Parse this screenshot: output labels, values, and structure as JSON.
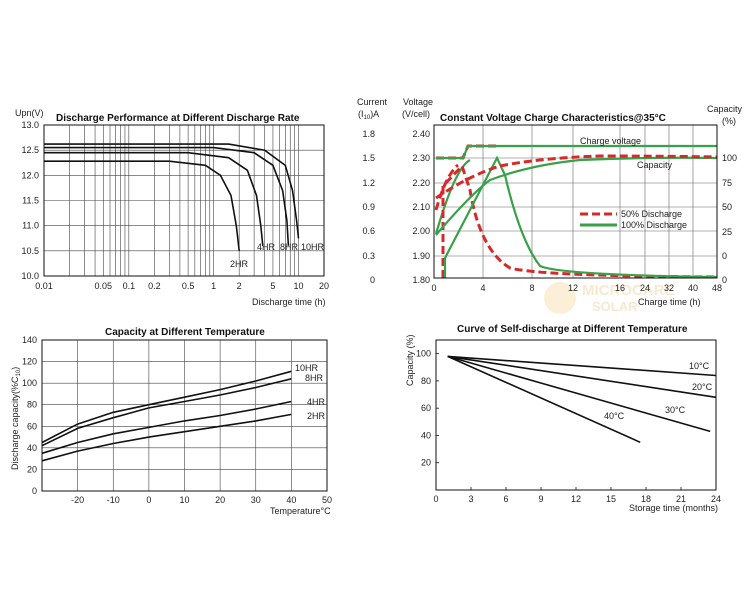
{
  "chart_data": [
    {
      "type": "line",
      "title": "Discharge Performance at Different Discharge Rate",
      "ylabel": "Upn(V)",
      "xlabel": "Discharge  time (h)",
      "x_scale": "log",
      "xlim": [
        0.01,
        20
      ],
      "ylim": [
        10.0,
        13.0
      ],
      "x_ticks": [
        0.01,
        0.05,
        0.1,
        0.2,
        0.5,
        1,
        2,
        5,
        10,
        20
      ],
      "x_tick_labels": [
        "0.01",
        "0.05",
        "0.1",
        "0.2",
        "0.5",
        "1",
        "2",
        "5",
        "10",
        "20"
      ],
      "y_ticks": [
        10.0,
        10.5,
        11.0,
        11.5,
        12.0,
        12.5,
        13.0
      ],
      "y_tick_labels": [
        "10.0",
        "10.5",
        "11.0",
        "11.5",
        "12.0",
        "12.5",
        "13.0"
      ],
      "grid": true,
      "series": [
        {
          "name": "2HR",
          "x": [
            0.01,
            0.3,
            0.8,
            1.2,
            1.6,
            1.85,
            2.0
          ],
          "y": [
            12.28,
            12.28,
            12.2,
            12.0,
            11.6,
            11.0,
            10.5
          ]
        },
        {
          "name": "4HR",
          "x": [
            0.01,
            0.5,
            1.5,
            2.5,
            3.2,
            3.6,
            3.8
          ],
          "y": [
            12.45,
            12.45,
            12.35,
            12.1,
            11.6,
            11.0,
            10.6
          ]
        },
        {
          "name": "8HR",
          "x": [
            0.01,
            1.0,
            3.0,
            5.0,
            6.5,
            7.3,
            7.6
          ],
          "y": [
            12.55,
            12.55,
            12.45,
            12.2,
            11.7,
            11.1,
            10.6
          ]
        },
        {
          "name": "10HR",
          "x": [
            0.01,
            1.5,
            4.0,
            7.0,
            8.5,
            9.5,
            10.0
          ],
          "y": [
            12.62,
            12.62,
            12.5,
            12.2,
            11.7,
            11.1,
            10.75
          ]
        }
      ],
      "labels": [
        "2HR",
        "4HR",
        "8HR",
        "10HR"
      ]
    },
    {
      "type": "line",
      "title": "Constant Voltage Charge Characteristics@35°C",
      "y_left1_label": [
        "Current",
        "(I",
        "10",
        ")A"
      ],
      "y_left2_label": [
        "Voltage",
        "(V/cell)"
      ],
      "y_right_label": [
        "Capacity",
        "(%)"
      ],
      "xlabel": "Charge time (h)",
      "x_ticks": [
        0,
        4,
        8,
        12,
        16,
        24,
        32,
        40,
        48
      ],
      "current_ticks": [
        "1.8",
        "1.5",
        "1.2",
        "0.9",
        "0.6",
        "0.3",
        "0"
      ],
      "voltage_ticks": [
        "2.40",
        "2.30",
        "2.20",
        "2.10",
        "2.00",
        "1.90",
        "1.80"
      ],
      "capacity_ticks": [
        "100",
        "75",
        "50",
        "25",
        "0"
      ],
      "annotations": [
        "Charge voltage",
        "Capacity"
      ],
      "legend": [
        "50% Discharge",
        "100% Discharge"
      ],
      "series": [
        {
          "name": "50% Discharge",
          "color": "#d42a2a",
          "style": "dashed"
        },
        {
          "name": "100% Discharge",
          "color": "#3aa04a",
          "style": "solid"
        }
      ],
      "note": ""
    },
    {
      "type": "line",
      "title": "Capacity at Different Temperature",
      "ylabel": "Discharge capacity(%C10)",
      "xlabel": "Temperature°C",
      "xlim": [
        -30,
        50
      ],
      "ylim": [
        0,
        140
      ],
      "x_ticks": [
        -20,
        -10,
        0,
        10,
        20,
        30,
        40,
        50
      ],
      "y_ticks": [
        0,
        20,
        40,
        60,
        80,
        100,
        120,
        140
      ],
      "grid": true,
      "series": [
        {
          "name": "10HR",
          "x": [
            -30,
            -20,
            -10,
            0,
            10,
            20,
            30,
            40
          ],
          "y": [
            45,
            62,
            73,
            80,
            87,
            94,
            102,
            111
          ]
        },
        {
          "name": "8HR",
          "x": [
            -30,
            -20,
            -10,
            0,
            10,
            20,
            30,
            40
          ],
          "y": [
            42,
            58,
            68,
            77,
            83,
            89,
            96,
            104
          ]
        },
        {
          "name": "4HR",
          "x": [
            -30,
            -20,
            -10,
            0,
            10,
            20,
            30,
            40
          ],
          "y": [
            35,
            45,
            53,
            59,
            65,
            70,
            76,
            83
          ]
        },
        {
          "name": "2HR",
          "x": [
            -30,
            -20,
            -10,
            0,
            10,
            20,
            30,
            40
          ],
          "y": [
            28,
            37,
            44,
            50,
            55,
            60,
            65,
            71
          ]
        }
      ]
    },
    {
      "type": "line",
      "title": "Curve of Self-discharge at Different Temperature",
      "ylabel": "Capacity (%)",
      "xlabel": "Storage time (months)",
      "xlim": [
        0,
        24
      ],
      "ylim": [
        0,
        100
      ],
      "x_ticks": [
        0,
        3,
        6,
        9,
        12,
        15,
        18,
        21,
        24
      ],
      "y_ticks": [
        20,
        40,
        60,
        80,
        100
      ],
      "grid": false,
      "series": [
        {
          "name": "10°C",
          "x": [
            1,
            24
          ],
          "y": [
            98,
            84
          ]
        },
        {
          "name": "20°C",
          "x": [
            1,
            24
          ],
          "y": [
            98,
            68
          ]
        },
        {
          "name": "30°C",
          "x": [
            1,
            23.5
          ],
          "y": [
            98,
            43
          ]
        },
        {
          "name": "40°C",
          "x": [
            1,
            17.5
          ],
          "y": [
            98,
            35
          ]
        }
      ]
    }
  ],
  "watermark": {
    "line1": "MICROCARE",
    "line2": "SOLAR"
  }
}
